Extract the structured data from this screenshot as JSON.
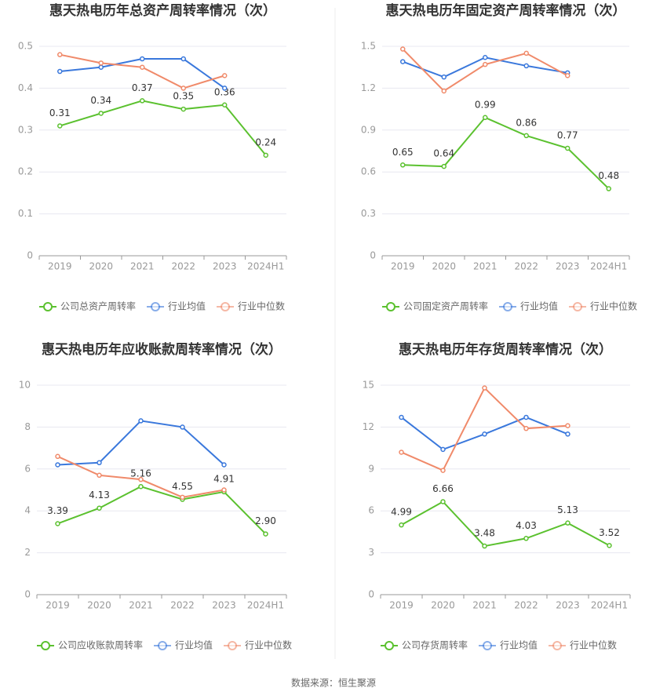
{
  "chart_data": [
    {
      "type": "line",
      "title": "惠天热电历年总资产周转率情况（次）",
      "categories": [
        "2019",
        "2020",
        "2021",
        "2022",
        "2023",
        "2024H1"
      ],
      "series": [
        {
          "name": "公司总资产周转率",
          "color": "#5bc12f",
          "values": [
            0.31,
            0.34,
            0.37,
            0.35,
            0.36,
            0.24
          ],
          "labels": true
        },
        {
          "name": "行业均值",
          "color": "#3a78dc",
          "values": [
            0.44,
            0.45,
            0.47,
            0.47,
            0.4,
            null
          ]
        },
        {
          "name": "行业中位数",
          "color": "#f08a6a",
          "values": [
            0.48,
            0.46,
            0.45,
            0.4,
            0.43,
            null
          ]
        }
      ],
      "ylim": [
        0,
        0.5
      ],
      "yticks": [
        0,
        0.1,
        0.2,
        0.3,
        0.4,
        0.5
      ],
      "grid": true
    },
    {
      "type": "line",
      "title": "惠天热电历年固定资产周转率情况（次）",
      "categories": [
        "2019",
        "2020",
        "2021",
        "2022",
        "2023",
        "2024H1"
      ],
      "series": [
        {
          "name": "公司固定资产周转率",
          "color": "#5bc12f",
          "values": [
            0.65,
            0.64,
            0.99,
            0.86,
            0.77,
            0.48
          ],
          "labels": true
        },
        {
          "name": "行业均值",
          "color": "#3a78dc",
          "values": [
            1.39,
            1.28,
            1.42,
            1.36,
            1.31,
            null
          ]
        },
        {
          "name": "行业中位数",
          "color": "#f08a6a",
          "values": [
            1.48,
            1.18,
            1.37,
            1.45,
            1.29,
            null
          ]
        }
      ],
      "ylim": [
        0,
        1.5
      ],
      "yticks": [
        0,
        0.3,
        0.6,
        0.9,
        1.2,
        1.5
      ],
      "grid": true
    },
    {
      "type": "line",
      "title": "惠天热电历年应收账款周转率情况（次）",
      "categories": [
        "2019",
        "2020",
        "2021",
        "2022",
        "2023",
        "2024H1"
      ],
      "series": [
        {
          "name": "公司应收账款周转率",
          "color": "#5bc12f",
          "values": [
            3.39,
            4.13,
            5.16,
            4.55,
            4.91,
            2.9
          ],
          "value_labels": [
            "3.39",
            "4.13",
            "5.16",
            "4.55",
            "4.91",
            "2.90"
          ],
          "labels": true
        },
        {
          "name": "行业均值",
          "color": "#3a78dc",
          "values": [
            6.2,
            6.3,
            8.3,
            8.0,
            6.2,
            null
          ]
        },
        {
          "name": "行业中位数",
          "color": "#f08a6a",
          "values": [
            6.6,
            5.7,
            5.5,
            4.65,
            5.0,
            null
          ]
        }
      ],
      "ylim": [
        0,
        10
      ],
      "yticks": [
        0,
        2,
        4,
        6,
        8,
        10
      ],
      "grid": true
    },
    {
      "type": "line",
      "title": "惠天热电历年存货周转率情况（次）",
      "categories": [
        "2019",
        "2020",
        "2021",
        "2022",
        "2023",
        "2024H1"
      ],
      "series": [
        {
          "name": "公司存货周转率",
          "color": "#5bc12f",
          "values": [
            4.99,
            6.66,
            3.48,
            4.03,
            5.13,
            3.52
          ],
          "labels": true
        },
        {
          "name": "行业均值",
          "color": "#3a78dc",
          "values": [
            12.7,
            10.4,
            11.5,
            12.7,
            11.5,
            null
          ]
        },
        {
          "name": "行业中位数",
          "color": "#f08a6a",
          "values": [
            10.2,
            8.9,
            14.8,
            11.9,
            12.1,
            null
          ]
        }
      ],
      "ylim": [
        0,
        15
      ],
      "yticks": [
        0,
        3,
        6,
        9,
        12,
        15
      ],
      "grid": true
    }
  ],
  "source": "数据来源：恒生聚源"
}
